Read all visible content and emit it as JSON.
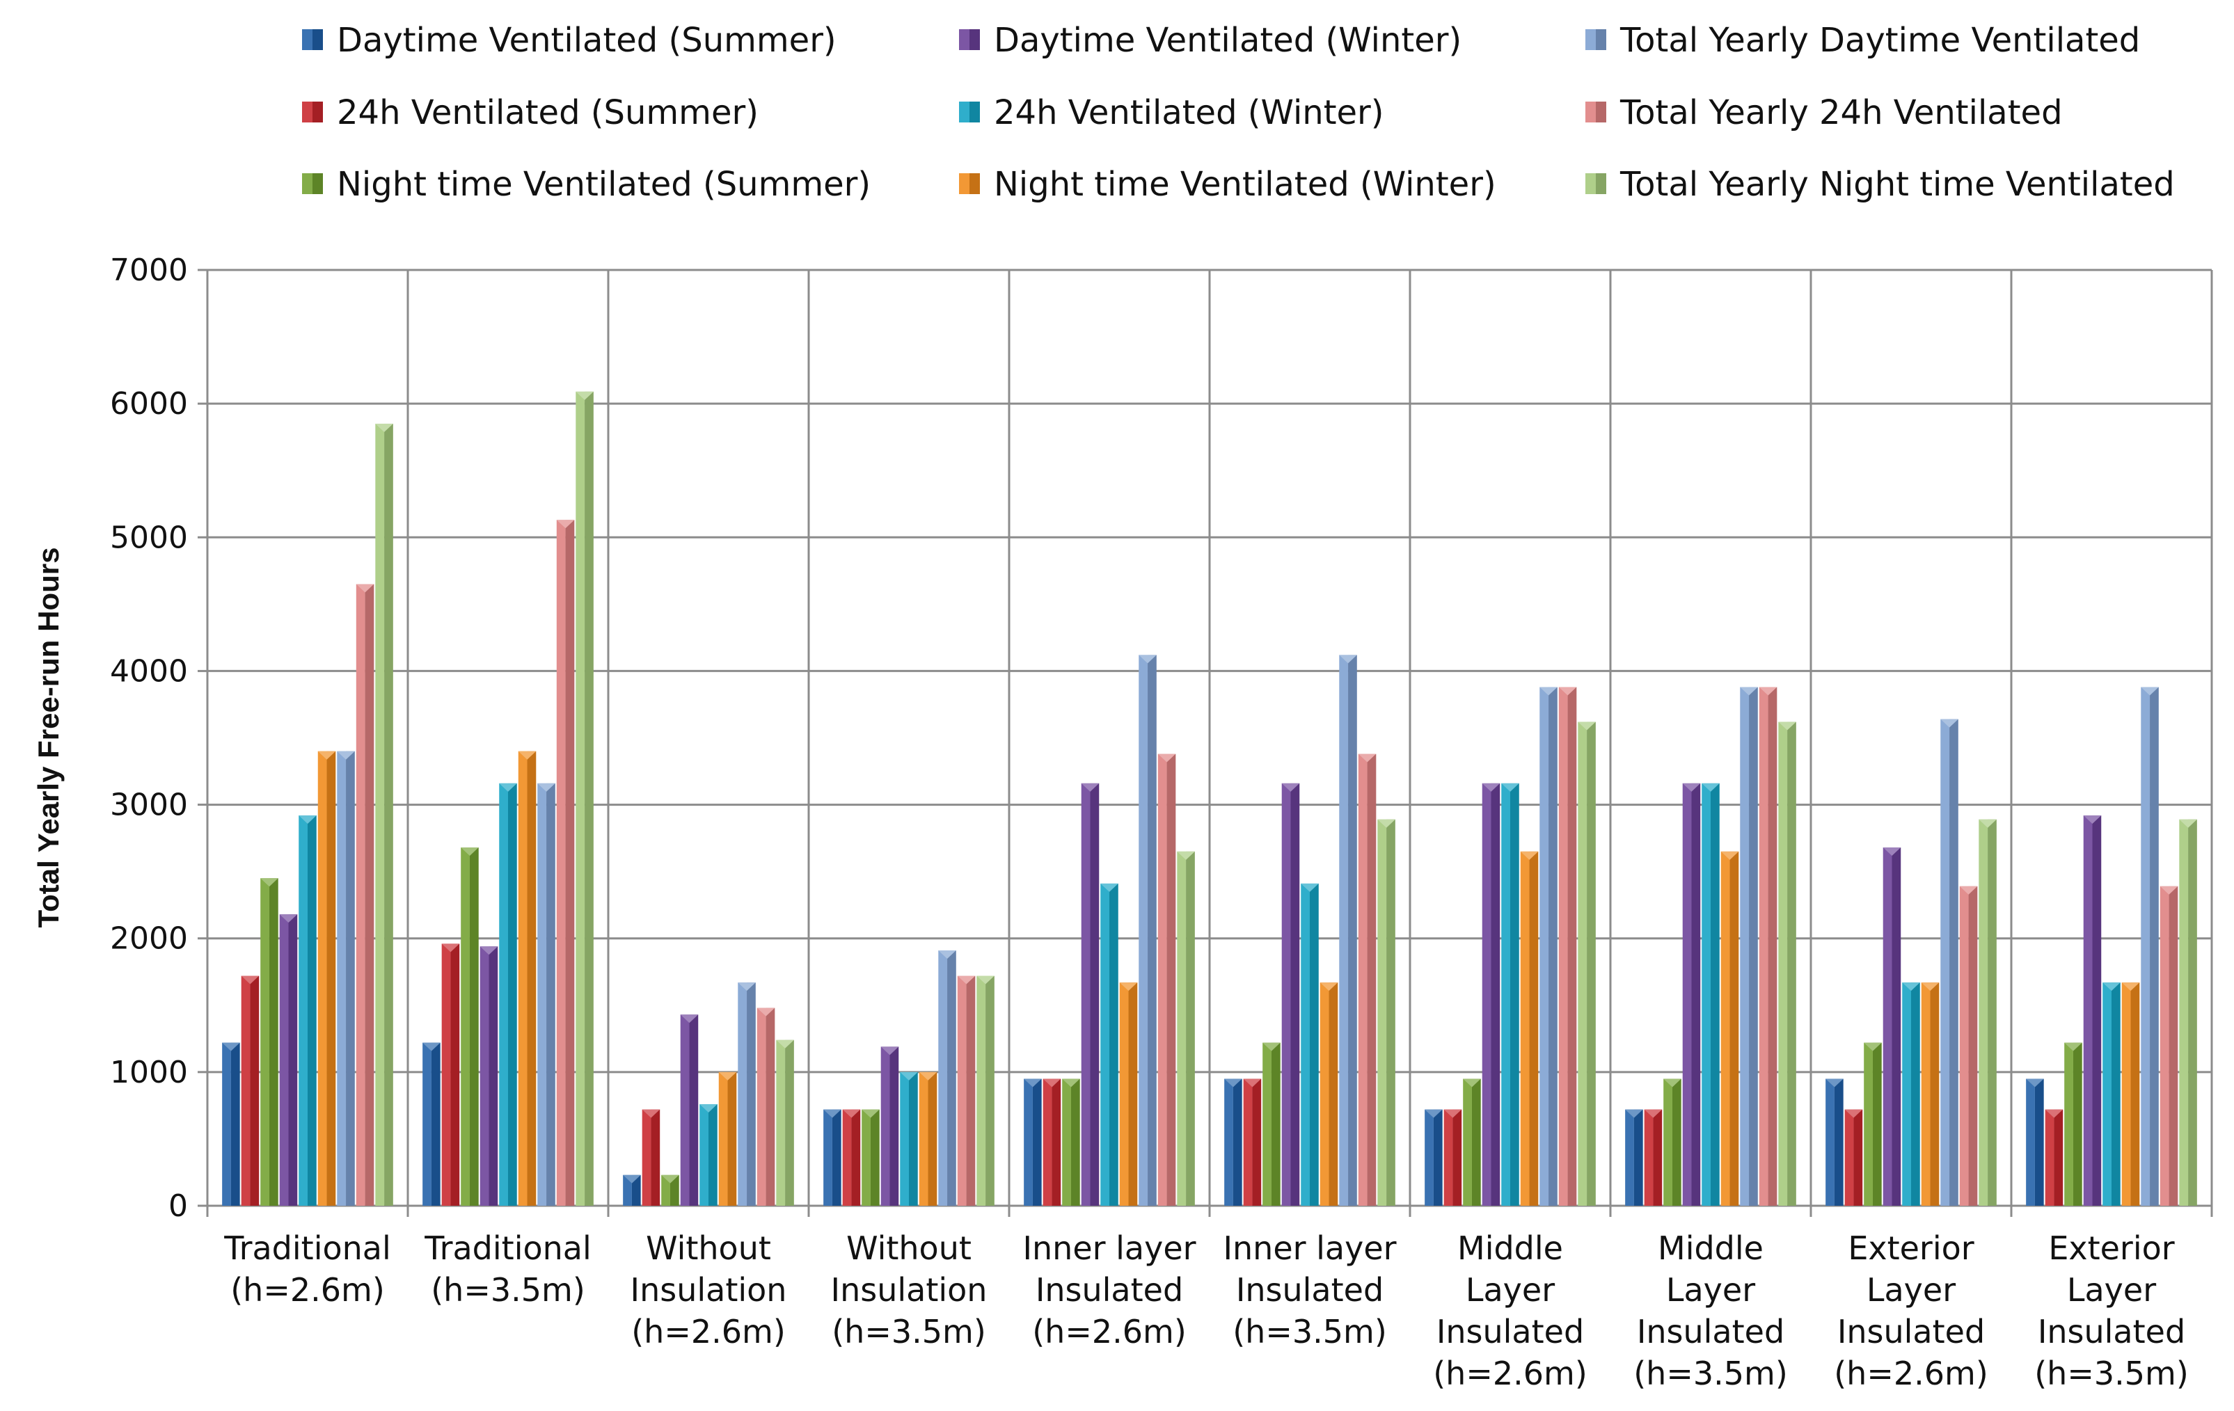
{
  "chart_data": {
    "type": "bar",
    "title": "",
    "xlabel": "",
    "ylabel": "Total Yearly Free-run Hours",
    "ylim": [
      0,
      7000
    ],
    "yticks": [
      0,
      1000,
      2000,
      3000,
      4000,
      5000,
      6000,
      7000
    ],
    "grid": true,
    "legend_position": "top",
    "categories": [
      [
        "Traditional",
        "(h=2.6m)"
      ],
      [
        "Traditional",
        "(h=3.5m)"
      ],
      [
        "Without",
        "Insulation",
        "(h=2.6m)"
      ],
      [
        "Without",
        "Insulation",
        "(h=3.5m)"
      ],
      [
        "Inner layer",
        "Insulated",
        "(h=2.6m)"
      ],
      [
        "Inner layer",
        "Insulated",
        "(h=3.5m)"
      ],
      [
        "Middle",
        "Layer",
        "Insulated",
        "(h=2.6m)"
      ],
      [
        "Middle",
        "Layer",
        "Insulated",
        "(h=3.5m)"
      ],
      [
        "Exterior",
        "Layer",
        "Insulated",
        "(h=2.6m)"
      ],
      [
        "Exterior",
        "Layer",
        "Insulated",
        "(h=3.5m)"
      ]
    ],
    "series": [
      {
        "name": "Daytime Ventilated (Summer)",
        "color": "#1f5fa8",
        "values": [
          1220,
          1220,
          230,
          720,
          950,
          950,
          720,
          720,
          950,
          950
        ]
      },
      {
        "name": "24h Ventilated (Summer)",
        "color": "#c8262c",
        "values": [
          1720,
          1960,
          720,
          720,
          950,
          950,
          720,
          720,
          720,
          720
        ]
      },
      {
        "name": "Night time Ventilated (Summer)",
        "color": "#72a12f",
        "values": [
          2450,
          2680,
          230,
          720,
          950,
          1220,
          950,
          950,
          1220,
          1220
        ]
      },
      {
        "name": "Daytime Ventilated (Winter)",
        "color": "#6a3f98",
        "values": [
          2180,
          1940,
          1430,
          1190,
          3160,
          3160,
          3160,
          3160,
          2680,
          2920
        ]
      },
      {
        "name": "24h Ventilated (Winter)",
        "color": "#13a3c4",
        "values": [
          2920,
          3160,
          760,
          1000,
          2410,
          2410,
          3160,
          3160,
          1670,
          1670
        ]
      },
      {
        "name": "Night time Ventilated (Winter)",
        "color": "#f08a1a",
        "values": [
          3400,
          3400,
          1000,
          1000,
          1670,
          1670,
          2650,
          2650,
          1670,
          1670
        ]
      },
      {
        "name": "Total Yearly Daytime Ventilated",
        "color": "#7c9fd0",
        "values": [
          3400,
          3160,
          1670,
          1910,
          4120,
          4120,
          3880,
          3880,
          3640,
          3880
        ]
      },
      {
        "name": "Total Yearly 24h Ventilated",
        "color": "#de7f7f",
        "values": [
          4650,
          5130,
          1480,
          1720,
          3380,
          3380,
          3880,
          3880,
          2390,
          2390
        ]
      },
      {
        "name": "Total Yearly Night time Ventilated",
        "color": "#a4c97a",
        "values": [
          5850,
          6090,
          1240,
          1720,
          2650,
          2890,
          3620,
          3620,
          2890,
          2890
        ]
      }
    ],
    "colors": {
      "grid": "#8c8c8c",
      "axis": "#8c8c8c",
      "text": "#111111"
    }
  }
}
